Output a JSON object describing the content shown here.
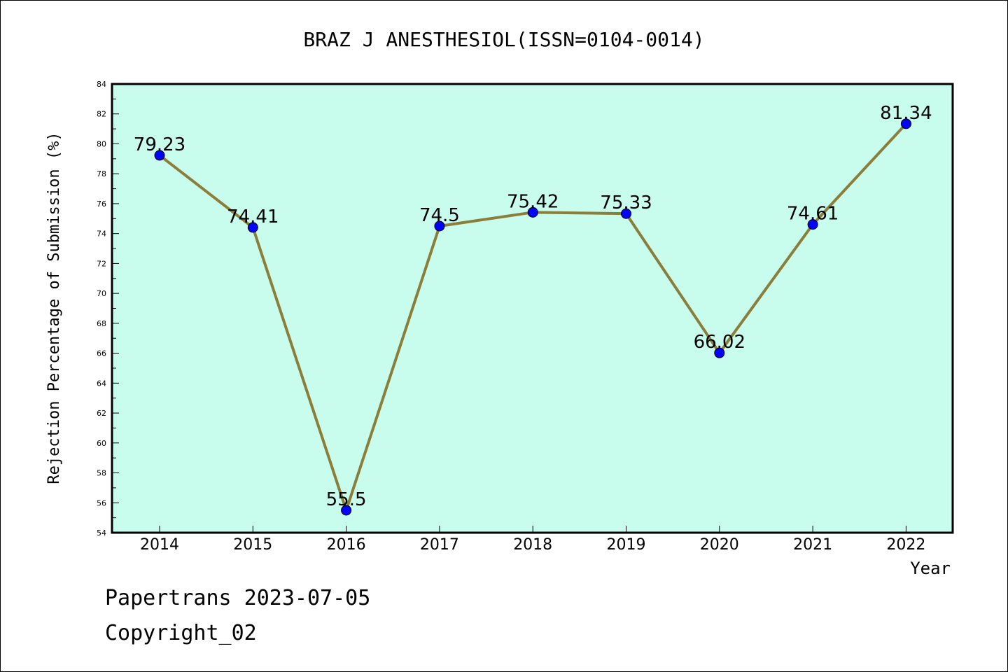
{
  "chart_data": {
    "type": "line",
    "title": "BRAZ J ANESTHESIOL(ISSN=0104-0014)",
    "xlabel": "Year",
    "ylabel": "Rejection Percentage of Submission (%)",
    "categories": [
      "2014",
      "2015",
      "2016",
      "2017",
      "2018",
      "2019",
      "2020",
      "2021",
      "2022"
    ],
    "series": [
      {
        "values": [
          79.23,
          74.41,
          55.5,
          74.5,
          75.42,
          75.33,
          66.02,
          74.61,
          81.34
        ],
        "data_labels": [
          "79.23",
          "74.41",
          "55.5",
          "74.5",
          "75.42",
          "75.33",
          "66.02",
          "74.61",
          "81.34"
        ]
      }
    ],
    "ylim": [
      54,
      84
    ],
    "yticks": [
      "54",
      "56",
      "58",
      "60",
      "62",
      "64",
      "66",
      "68",
      "70",
      "72",
      "74",
      "76",
      "78",
      "80",
      "82",
      "84"
    ],
    "grid": false,
    "legend": "none",
    "colors": {
      "plot_background": "#c8fdee",
      "line": "#8b7d3a",
      "marker": "#0000ff"
    }
  },
  "footer": {
    "line1": "Papertrans 2023-07-05",
    "line2": "Copyright_02"
  }
}
